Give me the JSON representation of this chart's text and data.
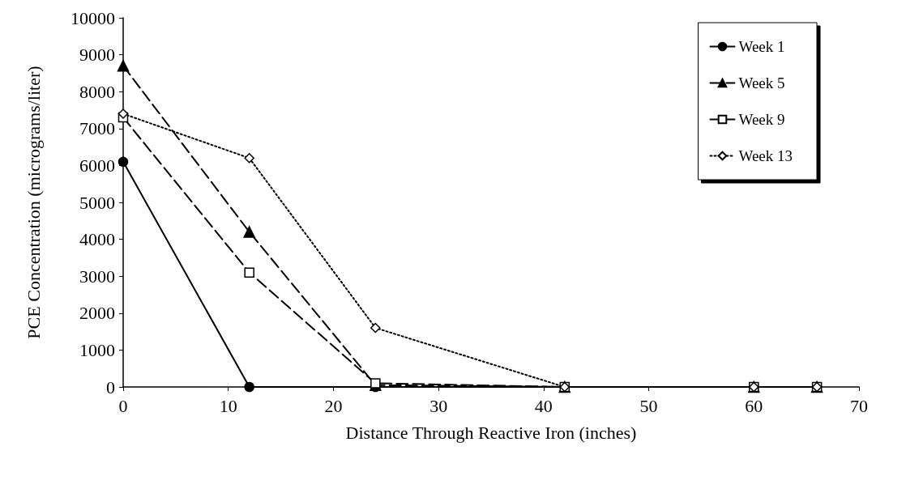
{
  "chart_data": {
    "type": "line",
    "xlabel": "Distance Through Reactive Iron (inches)",
    "ylabel": "PCE Concentration (micrograms/liter)",
    "x": [
      0,
      12,
      24,
      42,
      60,
      66
    ],
    "xlim": [
      0,
      70
    ],
    "xticks": [
      0,
      10,
      20,
      30,
      40,
      50,
      60,
      70
    ],
    "ylim": [
      0,
      10000
    ],
    "yticks": [
      0,
      1000,
      2000,
      3000,
      4000,
      5000,
      6000,
      7000,
      8000,
      9000,
      10000
    ],
    "grid": false,
    "legend": "top right",
    "series": [
      {
        "name": "Week 1",
        "color": "#000000",
        "marker": "circle",
        "line_style": "solid",
        "values": [
          6100,
          0,
          0,
          0,
          0,
          0
        ]
      },
      {
        "name": "Week 5",
        "color": "#000000",
        "marker": "triangle",
        "line_style": "dashed",
        "values": [
          8700,
          4200,
          50,
          0,
          0,
          0
        ]
      },
      {
        "name": "Week 9",
        "color": "#000000",
        "marker": "square",
        "line_style": "dashed",
        "values": [
          7300,
          3100,
          100,
          0,
          0,
          0
        ]
      },
      {
        "name": "Week 13",
        "color": "#000000",
        "marker": "diamond",
        "line_style": "dotted",
        "values": [
          7400,
          6200,
          1600,
          0,
          0,
          0
        ]
      }
    ]
  }
}
